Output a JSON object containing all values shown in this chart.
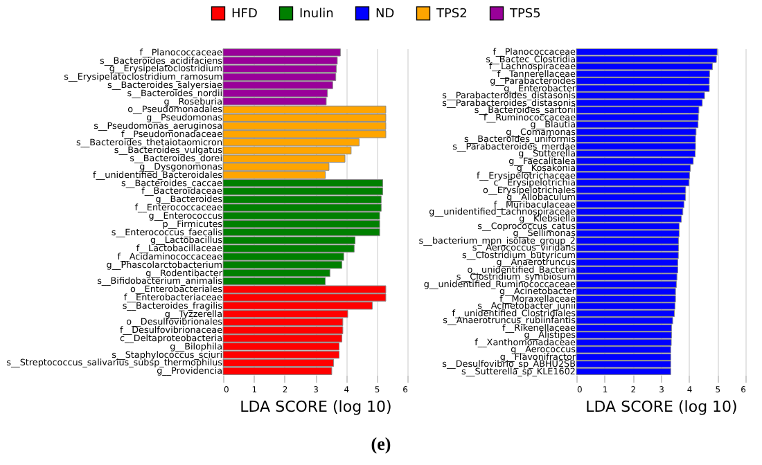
{
  "chart_data": [
    {
      "type": "bar",
      "orientation": "horizontal",
      "xlabel": "LDA SCORE (log 10)",
      "xlim": [
        0,
        6
      ],
      "xticks": [
        0,
        1,
        2,
        3,
        4,
        5,
        6
      ],
      "grid": "x",
      "legend": "top",
      "annotations": [
        "(e)"
      ],
      "categories": [
        "f__Planococcaceae",
        "s__Bacteroides_acidifaciens",
        "g__Erysipelatoclostridium",
        "s__Erysipelatoclostridium_ramosum",
        "s__Bacteroides_salyersiae",
        "s__Bacteroides_nordii",
        "g__Roseburia",
        "o__Pseudomonadales",
        "g__Pseudomonas",
        "s__Pseudomonas_aeruginosa",
        "f__Pseudomonadaceae",
        "s__Bacteroides_thetaiotaomicron",
        "s__Bacteroides_vulgatus",
        "s__Bacteroides_dorei",
        "g__Dysgonomonas",
        "f__unidentified_Bacteroidales",
        "s__Bacteroides_caccae",
        "f__Bacteroidaceae",
        "g__Bacteroides",
        "f__Enterococcaceae",
        "g__Enterococcus",
        "p__Firmicutes",
        "s__Enterococcus_faecalis",
        "g__Lactobacillus",
        "f__Lactobacillaceae",
        "f__Acidaminococcaceae",
        "g__Phascolarctobacterium",
        "g__Rodentibacter",
        "s__Bifidobacterium_animalis",
        "o__Enterobacteriales",
        "f__Enterobacteriaceae",
        "s__Bacteroides_fragilis",
        "g__Tyzzerella",
        "o__Desulfovibrionales",
        "f__Desulfovibrionaceae",
        "c__Deltaproteobacteria",
        "g__Bilophila",
        "s__Staphylococcus_sciuri",
        "s__Streptococcus_salivarius_subsp_thermophilus",
        "g__Providencia"
      ],
      "series": [
        {
          "name": "TPS5",
          "color": "#990099",
          "values": [
            3.82,
            3.72,
            3.69,
            3.67,
            3.57,
            3.4,
            3.36,
            null,
            null,
            null,
            null,
            null,
            null,
            null,
            null,
            null,
            null,
            null,
            null,
            null,
            null,
            null,
            null,
            null,
            null,
            null,
            null,
            null,
            null,
            null,
            null,
            null,
            null,
            null,
            null,
            null,
            null,
            null,
            null,
            null
          ]
        },
        {
          "name": "TPS2",
          "color": "#ffa500",
          "values": [
            null,
            null,
            null,
            null,
            null,
            null,
            null,
            5.3,
            5.3,
            5.3,
            5.3,
            4.43,
            4.17,
            3.97,
            3.45,
            3.33,
            null,
            null,
            null,
            null,
            null,
            null,
            null,
            null,
            null,
            null,
            null,
            null,
            null,
            null,
            null,
            null,
            null,
            null,
            null,
            null,
            null,
            null,
            null,
            null
          ]
        },
        {
          "name": "Inulin",
          "color": "#008000",
          "values": [
            null,
            null,
            null,
            null,
            null,
            null,
            null,
            null,
            null,
            null,
            null,
            null,
            null,
            null,
            null,
            null,
            5.2,
            5.2,
            5.15,
            5.15,
            5.1,
            5.1,
            5.1,
            4.3,
            4.27,
            3.93,
            3.87,
            3.48,
            3.33,
            null,
            null,
            null,
            null,
            null,
            null,
            null,
            null,
            null,
            null,
            null
          ]
        },
        {
          "name": "HFD",
          "color": "#ff0000",
          "values": [
            null,
            null,
            null,
            null,
            null,
            null,
            null,
            null,
            null,
            null,
            null,
            null,
            null,
            null,
            null,
            null,
            null,
            null,
            null,
            null,
            null,
            null,
            null,
            null,
            null,
            null,
            null,
            null,
            null,
            5.3,
            5.3,
            4.86,
            4.06,
            3.9,
            3.9,
            3.87,
            3.78,
            3.78,
            3.6,
            3.54
          ]
        }
      ]
    },
    {
      "type": "bar",
      "orientation": "horizontal",
      "xlabel": "LDA SCORE (log 10)",
      "xlim": [
        0,
        6
      ],
      "xticks": [
        0,
        1,
        2,
        3,
        4,
        5,
        6
      ],
      "grid": "x",
      "legend": "top",
      "categories": [
        "f__Planococcaceae",
        "s__Bactec_Clostridia",
        "f__Lachnospiraceae",
        "f__Tannerellaceae",
        "g__Parabacteroides",
        "g__Enterobacter",
        "s__Parabacteroides_distasonis",
        "s__Parabacteroides_distasonis",
        "s__Bacteroides_sartorii",
        "f__Ruminococcaceae",
        "g__Blautia",
        "g__Comamonas",
        "s__Bacteroides_uniformis",
        "s__Parabacteroides_merdae",
        "g__Sutterella",
        "g__Faecalitalea",
        "g__Kosakonia",
        "f__Erysipelotrichaceae",
        "c__Erysipelotrichia",
        "o__Erysipelotrichales",
        "g__Allobaculum",
        "f__Muribaculaceae",
        "g__unidentified_Lachnospiraceae",
        "g__Klebsiella",
        "s__Coprococcus_catus",
        "g__Sellimonas",
        "s__bacterium_mpn_isolate_group_2",
        "s__Aerococcus_viridans",
        "s__Clostridium_butyricum",
        "g__Anaerotruncus",
        "o__unidentified_Bacteria",
        "s__Clostridium_symbiosum",
        "g__unidentified_Ruminococcaceae",
        "g__Acinetobacter",
        "f__Moraxellaceae",
        "s__Acinetobacter_junii",
        "f__unidentified_Clostridiales",
        "s__Anaerotruncus_rubiinfantis",
        "f__Rikenellaceae",
        "g__Alistipes",
        "f__Xanthomonadaceae",
        "g__Aerococcus",
        "g__Flavonifractor",
        "s__Desulfovibrio_sp_ABHU2SB",
        "s__Sutterella_sp_KLE1602"
      ],
      "series": [
        {
          "name": "ND",
          "color": "#0000ff",
          "values": [
            5.0,
            4.97,
            4.83,
            4.73,
            4.72,
            4.72,
            4.55,
            4.47,
            4.35,
            4.33,
            4.32,
            4.25,
            4.23,
            4.23,
            4.22,
            4.15,
            4.05,
            4.02,
            4.0,
            3.88,
            3.87,
            3.82,
            3.78,
            3.73,
            3.65,
            3.65,
            3.63,
            3.63,
            3.62,
            3.6,
            3.6,
            3.57,
            3.55,
            3.52,
            3.52,
            3.5,
            3.48,
            3.42,
            3.38,
            3.38,
            3.37,
            3.35,
            3.35,
            3.35,
            3.35
          ]
        }
      ]
    }
  ]
}
